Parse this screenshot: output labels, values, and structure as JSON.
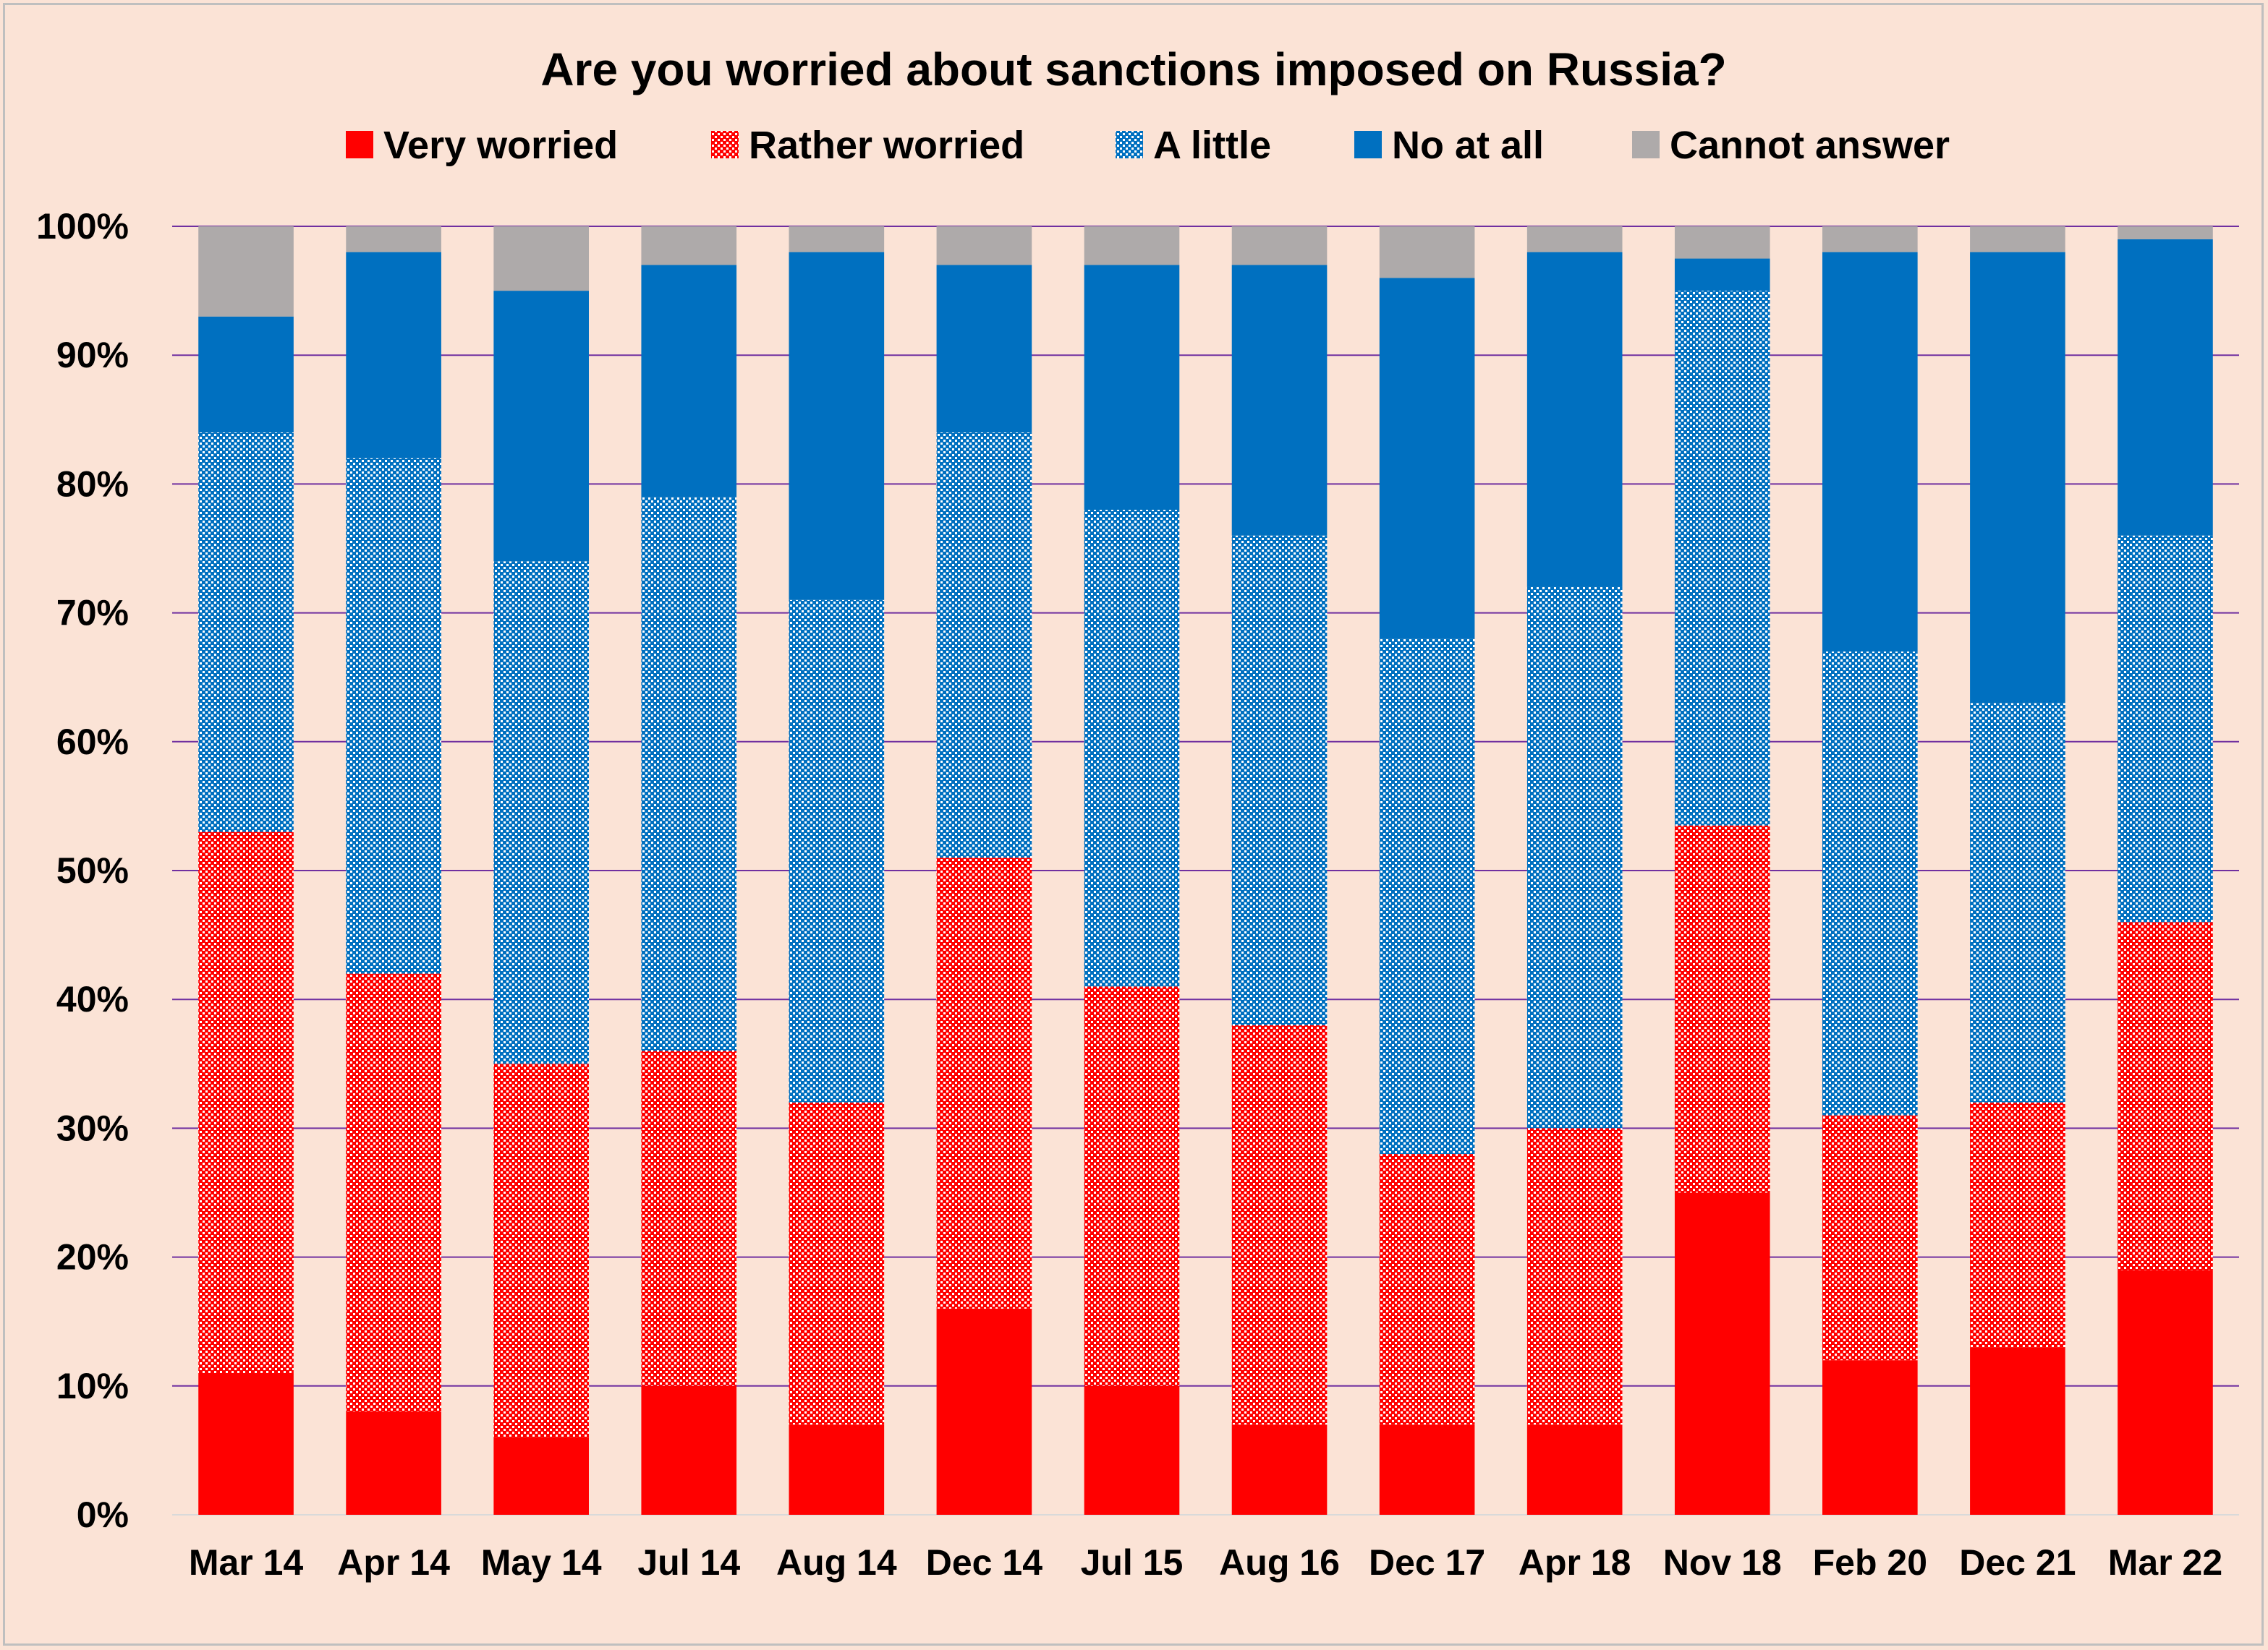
{
  "chart_data": {
    "type": "bar",
    "stacked": true,
    "percent_stacked": true,
    "title": "Are you worried about sanctions imposed on Russia?",
    "legend_position": "top",
    "categories": [
      "Mar 14",
      "Apr 14",
      "May 14",
      "Jul 14",
      "Aug 14",
      "Dec 14",
      "Jul 15",
      "Aug 16",
      "Dec 17",
      "Apr 18",
      "Nov 18",
      "Feb 20",
      "Dec 21",
      "Mar 22"
    ],
    "series": [
      {
        "name": "Very worried",
        "color": "#ff0000",
        "fill": "solid",
        "values": [
          11,
          8,
          6,
          10,
          7,
          16,
          10,
          7,
          7,
          7,
          25,
          12,
          13,
          19
        ]
      },
      {
        "name": "Rather worried",
        "color": "#ff0000",
        "fill": "dotted",
        "values": [
          42,
          34,
          29,
          26,
          25,
          35,
          31,
          31,
          21,
          23,
          28.5,
          19,
          19,
          27
        ]
      },
      {
        "name": "A little",
        "color": "#0070c0",
        "fill": "dotted",
        "values": [
          31,
          40,
          39,
          43,
          39,
          33,
          37,
          38,
          40,
          42,
          41.5,
          36,
          31,
          30
        ]
      },
      {
        "name": "No at all",
        "color": "#0070c0",
        "fill": "solid",
        "values": [
          9,
          16,
          21,
          18,
          27,
          13,
          19,
          21,
          28,
          26,
          2.5,
          31,
          35,
          23
        ]
      },
      {
        "name": "Cannot answer",
        "color": "#aeaaaa",
        "fill": "solid",
        "values": [
          7,
          2,
          5,
          3,
          2,
          3,
          3,
          3,
          4,
          2,
          2.5,
          2,
          2,
          1
        ]
      }
    ],
    "yticks": [
      "0%",
      "10%",
      "20%",
      "30%",
      "40%",
      "50%",
      "60%",
      "70%",
      "80%",
      "90%",
      "100%"
    ],
    "ylim": [
      0,
      100
    ],
    "grid": true,
    "grid_color": "#7030a0",
    "background": "#fbe3d6"
  }
}
